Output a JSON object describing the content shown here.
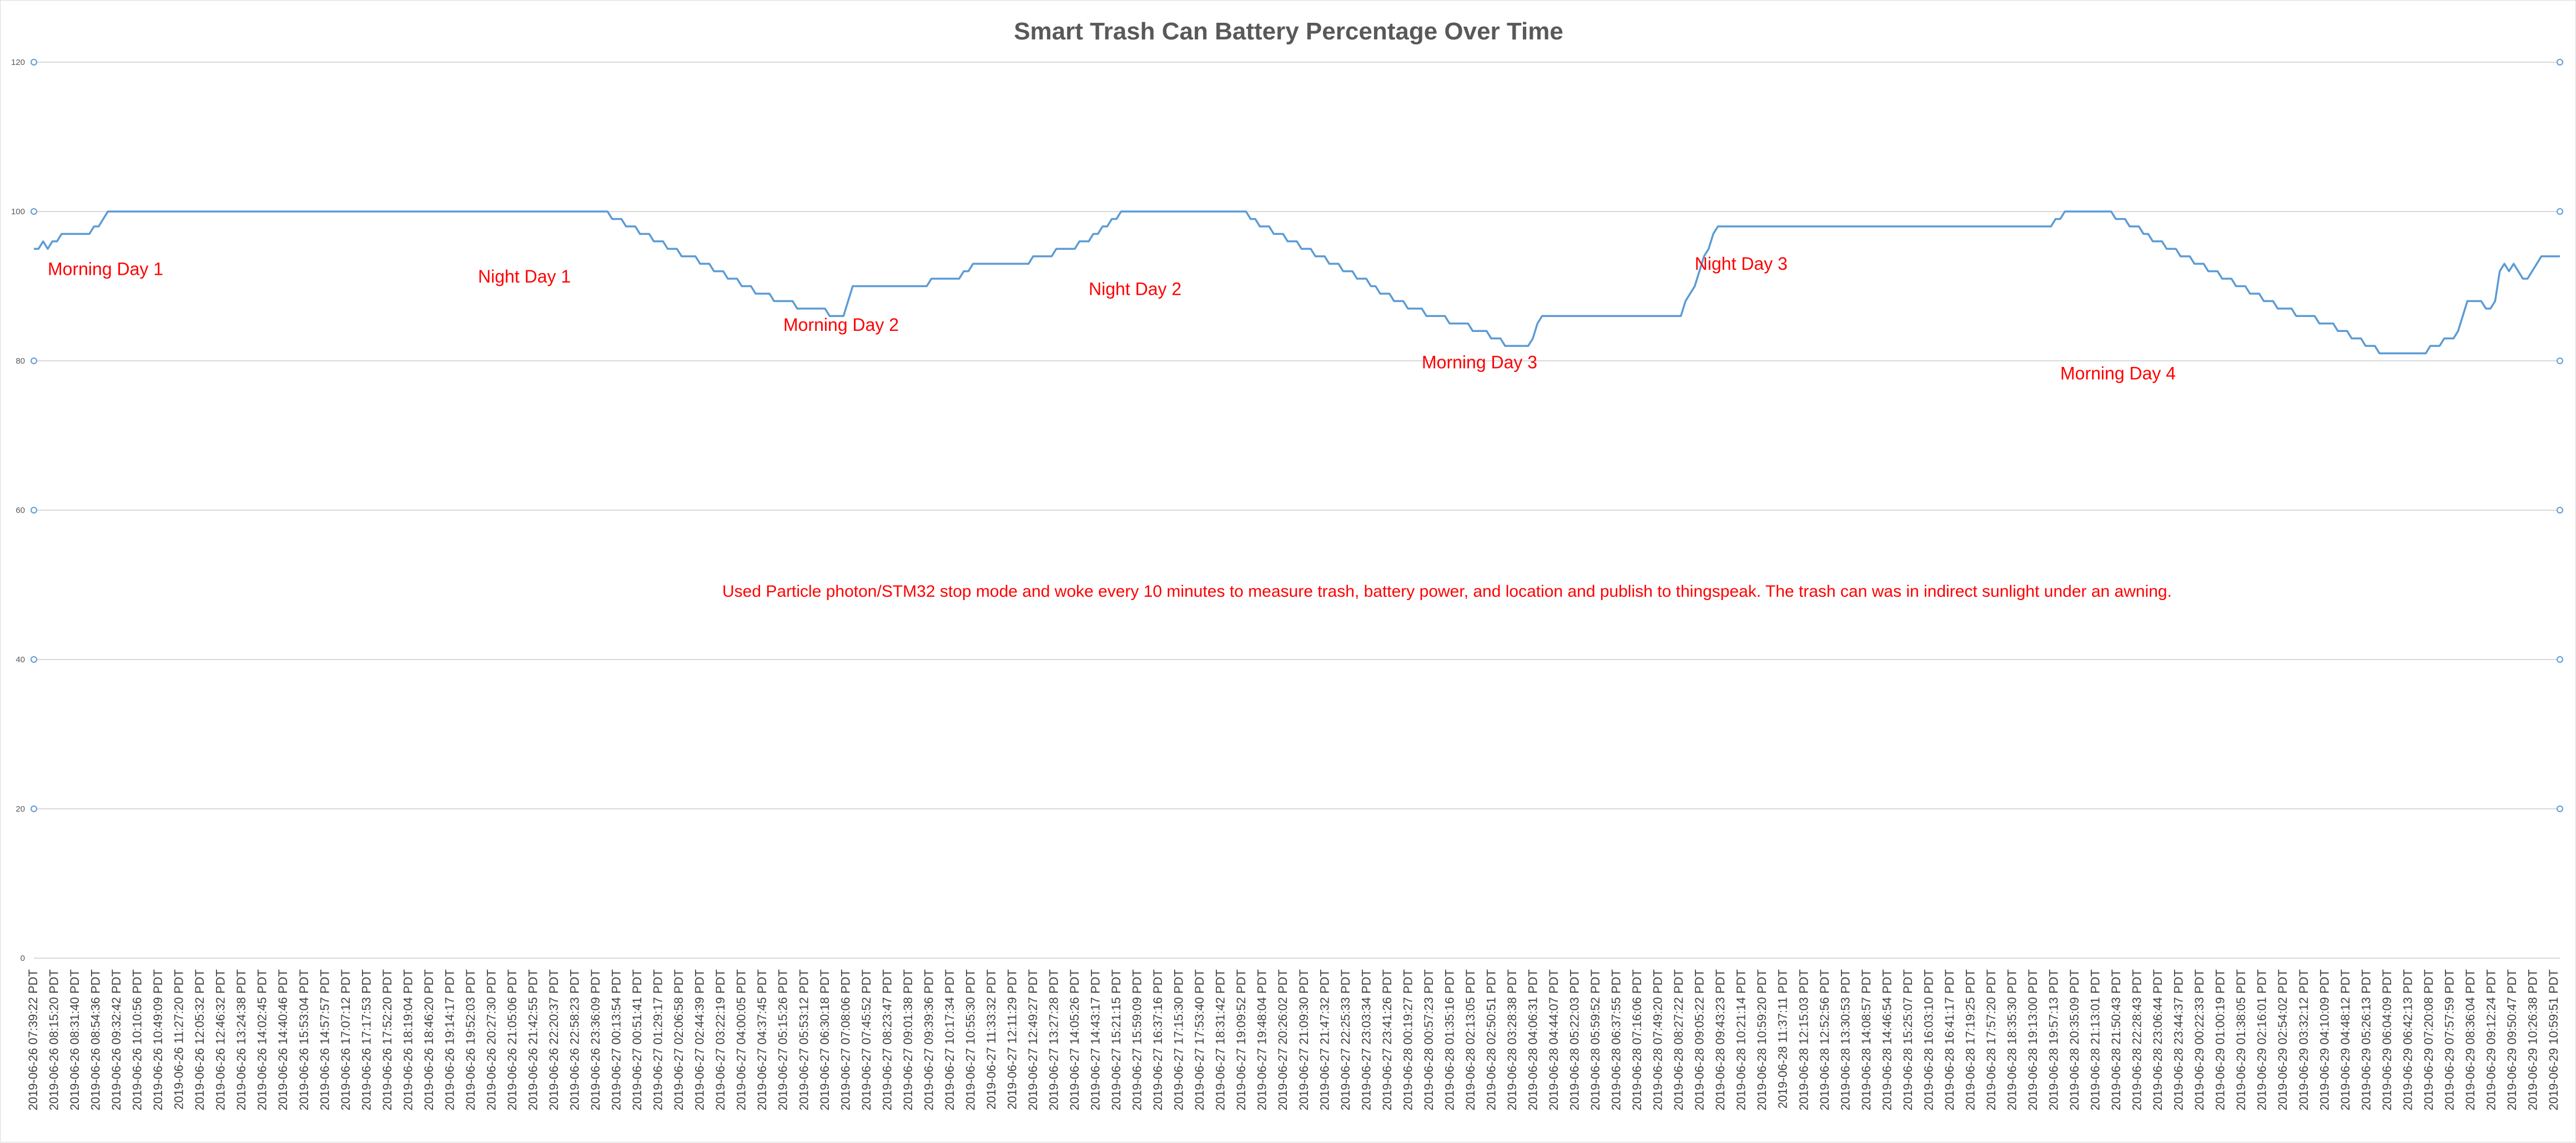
{
  "chart_data": {
    "type": "line",
    "title": "Smart Trash Can Battery Percentage Over Time",
    "xlabel": "",
    "ylabel": "",
    "ylim": [
      0,
      120
    ],
    "y_ticks": [
      "0",
      "20",
      "40",
      "60",
      "80",
      "100",
      "120"
    ],
    "grid": true,
    "legend": "none",
    "colors": {
      "line": "#5b9bd5",
      "grid": "#d9d9d9",
      "annotation": "#ff0000",
      "title": "#595959"
    },
    "x_tick_labels": [
      "2019-06-26 07:39:22 PDT",
      "2019-06-26 08:15:20 PDT",
      "2019-06-26 08:31:40 PDT",
      "2019-06-26 08:54:36 PDT",
      "2019-06-26 09:32:42 PDT",
      "2019-06-26 10:10:56 PDT",
      "2019-06-26 10:49:09 PDT",
      "2019-06-26 11:27:20 PDT",
      "2019-06-26 12:05:32 PDT",
      "2019-06-26 12:46:32 PDT",
      "2019-06-26 13:24:38 PDT",
      "2019-06-26 14:02:45 PDT",
      "2019-06-26 14:40:46 PDT",
      "2019-06-26 15:53:04 PDT",
      "2019-06-26 14:57:57 PDT",
      "2019-06-26 17:07:12 PDT",
      "2019-06-26 17:17:53 PDT",
      "2019-06-26 17:52:20 PDT",
      "2019-06-26 18:19:04 PDT",
      "2019-06-26 18:46:20 PDT",
      "2019-06-26 19:14:17 PDT",
      "2019-06-26 19:52:03 PDT",
      "2019-06-26 20:27:30 PDT",
      "2019-06-26 21:05:06 PDT",
      "2019-06-26 21:42:55 PDT",
      "2019-06-26 22:20:37 PDT",
      "2019-06-26 22:58:23 PDT",
      "2019-06-26 23:36:09 PDT",
      "2019-06-27 00:13:54 PDT",
      "2019-06-27 00:51:41 PDT",
      "2019-06-27 01:29:17 PDT",
      "2019-06-27 02:06:58 PDT",
      "2019-06-27 02:44:39 PDT",
      "2019-06-27 03:22:19 PDT",
      "2019-06-27 04:00:05 PDT",
      "2019-06-27 04:37:45 PDT",
      "2019-06-27 05:15:26 PDT",
      "2019-06-27 05:53:12 PDT",
      "2019-06-27 06:30:18 PDT",
      "2019-06-27 07:08:06 PDT",
      "2019-06-27 07:45:52 PDT",
      "2019-06-27 08:23:47 PDT",
      "2019-06-27 09:01:38 PDT",
      "2019-06-27 09:39:36 PDT",
      "2019-06-27 10:17:34 PDT",
      "2019-06-27 10:55:30 PDT",
      "2019-06-27 11:33:32 PDT",
      "2019-06-27 12:11:29 PDT",
      "2019-06-27 12:49:27 PDT",
      "2019-06-27 13:27:28 PDT",
      "2019-06-27 14:05:26 PDT",
      "2019-06-27 14:43:17 PDT",
      "2019-06-27 15:21:15 PDT",
      "2019-06-27 15:59:09 PDT",
      "2019-06-27 16:37:16 PDT",
      "2019-06-27 17:15:30 PDT",
      "2019-06-27 17:53:40 PDT",
      "2019-06-27 18:31:42 PDT",
      "2019-06-27 19:09:52 PDT",
      "2019-06-27 19:48:04 PDT",
      "2019-06-27 20:26:02 PDT",
      "2019-06-27 21:09:30 PDT",
      "2019-06-27 21:47:32 PDT",
      "2019-06-27 22:25:33 PDT",
      "2019-06-27 23:03:34 PDT",
      "2019-06-27 23:41:26 PDT",
      "2019-06-28 00:19:27 PDT",
      "2019-06-28 00:57:23 PDT",
      "2019-06-28 01:35:16 PDT",
      "2019-06-28 02:13:05 PDT",
      "2019-06-28 02:50:51 PDT",
      "2019-06-28 03:28:38 PDT",
      "2019-06-28 04:06:31 PDT",
      "2019-06-28 04:44:07 PDT",
      "2019-06-28 05:22:03 PDT",
      "2019-06-28 05:59:52 PDT",
      "2019-06-28 06:37:55 PDT",
      "2019-06-28 07:16:06 PDT",
      "2019-06-28 07:49:20 PDT",
      "2019-06-28 08:27:22 PDT",
      "2019-06-28 09:05:22 PDT",
      "2019-06-28 09:43:23 PDT",
      "2019-06-28 10:21:14 PDT",
      "2019-06-28 10:59:20 PDT",
      "2019-06-28 11:37:11 PDT",
      "2019-06-28 12:15:03 PDT",
      "2019-06-28 12:52:56 PDT",
      "2019-06-28 13:30:53 PDT",
      "2019-06-28 14:08:57 PDT",
      "2019-06-28 14:46:54 PDT",
      "2019-06-28 15:25:07 PDT",
      "2019-06-28 16:03:10 PDT",
      "2019-06-28 16:41:17 PDT",
      "2019-06-28 17:19:25 PDT",
      "2019-06-28 17:57:20 PDT",
      "2019-06-28 18:35:30 PDT",
      "2019-06-28 19:13:00 PDT",
      "2019-06-28 19:57:13 PDT",
      "2019-06-28 20:35:09 PDT",
      "2019-06-28 21:13:01 PDT",
      "2019-06-28 21:50:43 PDT",
      "2019-06-28 22:28:43 PDT",
      "2019-06-28 23:06:44 PDT",
      "2019-06-28 23:44:37 PDT",
      "2019-06-29 00:22:33 PDT",
      "2019-06-29 01:00:19 PDT",
      "2019-06-29 01:38:05 PDT",
      "2019-06-29 02:16:01 PDT",
      "2019-06-29 02:54:02 PDT",
      "2019-06-29 03:32:12 PDT",
      "2019-06-29 04:10:09 PDT",
      "2019-06-29 04:48:12 PDT",
      "2019-06-29 05:26:13 PDT",
      "2019-06-29 06:04:09 PDT",
      "2019-06-29 06:42:13 PDT",
      "2019-06-29 07:20:08 PDT",
      "2019-06-29 07:57:59 PDT",
      "2019-06-29 08:36:04 PDT",
      "2019-06-29 09:12:24 PDT",
      "2019-06-29 09:50:47 PDT",
      "2019-06-29 10:26:38 PDT",
      "2019-06-29 10:59:51 PDT"
    ],
    "series": [
      {
        "values": [
          95,
          95,
          96,
          95,
          96,
          96,
          97,
          97,
          97,
          97,
          97,
          97,
          97,
          98,
          98,
          99,
          100,
          100,
          100,
          100,
          100,
          100,
          100,
          100,
          100,
          100,
          100,
          100,
          100,
          100,
          100,
          100,
          100,
          100,
          100,
          100,
          100,
          100,
          100,
          100,
          100,
          100,
          100,
          100,
          100,
          100,
          100,
          100,
          100,
          100,
          100,
          100,
          100,
          100,
          100,
          100,
          100,
          100,
          100,
          100,
          100,
          100,
          100,
          100,
          100,
          100,
          100,
          100,
          100,
          100,
          100,
          100,
          100,
          100,
          100,
          100,
          100,
          100,
          100,
          100,
          100,
          100,
          100,
          100,
          100,
          100,
          100,
          100,
          100,
          100,
          100,
          100,
          100,
          100,
          100,
          100,
          100,
          100,
          100,
          100,
          100,
          100,
          100,
          100,
          100,
          100,
          100,
          100,
          100,
          100,
          100,
          100,
          100,
          100,
          100,
          100,
          100,
          100,
          100,
          100,
          100,
          100,
          100,
          100,
          100,
          99,
          99,
          99,
          98,
          98,
          98,
          97,
          97,
          97,
          96,
          96,
          96,
          95,
          95,
          95,
          94,
          94,
          94,
          94,
          93,
          93,
          93,
          92,
          92,
          92,
          91,
          91,
          91,
          90,
          90,
          90,
          89,
          89,
          89,
          89,
          88,
          88,
          88,
          88,
          88,
          87,
          87,
          87,
          87,
          87,
          87,
          87,
          86,
          86,
          86,
          86,
          88,
          90,
          90,
          90,
          90,
          90,
          90,
          90,
          90,
          90,
          90,
          90,
          90,
          90,
          90,
          90,
          90,
          90,
          91,
          91,
          91,
          91,
          91,
          91,
          91,
          92,
          92,
          93,
          93,
          93,
          93,
          93,
          93,
          93,
          93,
          93,
          93,
          93,
          93,
          93,
          94,
          94,
          94,
          94,
          94,
          95,
          95,
          95,
          95,
          95,
          96,
          96,
          96,
          97,
          97,
          98,
          98,
          99,
          99,
          100,
          100,
          100,
          100,
          100,
          100,
          100,
          100,
          100,
          100,
          100,
          100,
          100,
          100,
          100,
          100,
          100,
          100,
          100,
          100,
          100,
          100,
          100,
          100,
          100,
          100,
          100,
          100,
          99,
          99,
          98,
          98,
          98,
          97,
          97,
          97,
          96,
          96,
          96,
          95,
          95,
          95,
          94,
          94,
          94,
          93,
          93,
          93,
          92,
          92,
          92,
          91,
          91,
          91,
          90,
          90,
          89,
          89,
          89,
          88,
          88,
          88,
          87,
          87,
          87,
          87,
          86,
          86,
          86,
          86,
          86,
          85,
          85,
          85,
          85,
          85,
          84,
          84,
          84,
          84,
          83,
          83,
          83,
          82,
          82,
          82,
          82,
          82,
          82,
          83,
          85,
          86,
          86,
          86,
          86,
          86,
          86,
          86,
          86,
          86,
          86,
          86,
          86,
          86,
          86,
          86,
          86,
          86,
          86,
          86,
          86,
          86,
          86,
          86,
          86,
          86,
          86,
          86,
          86,
          86,
          86,
          86,
          88,
          89,
          90,
          92,
          94,
          95,
          97,
          98,
          98,
          98,
          98,
          98,
          98,
          98,
          98,
          98,
          98,
          98,
          98,
          98,
          98,
          98,
          98,
          98,
          98,
          98,
          98,
          98,
          98,
          98,
          98,
          98,
          98,
          98,
          98,
          98,
          98,
          98,
          98,
          98,
          98,
          98,
          98,
          98,
          98,
          98,
          98,
          98,
          98,
          98,
          98,
          98,
          98,
          98,
          98,
          98,
          98,
          98,
          98,
          98,
          98,
          98,
          98,
          98,
          98,
          98,
          98,
          98,
          98,
          98,
          98,
          98,
          98,
          98,
          98,
          98,
          98,
          98,
          98,
          98,
          99,
          99,
          100,
          100,
          100,
          100,
          100,
          100,
          100,
          100,
          100,
          100,
          100,
          99,
          99,
          99,
          98,
          98,
          98,
          97,
          97,
          96,
          96,
          96,
          95,
          95,
          95,
          94,
          94,
          94,
          93,
          93,
          93,
          92,
          92,
          92,
          91,
          91,
          91,
          90,
          90,
          90,
          89,
          89,
          89,
          88,
          88,
          88,
          87,
          87,
          87,
          87,
          86,
          86,
          86,
          86,
          86,
          85,
          85,
          85,
          85,
          84,
          84,
          84,
          83,
          83,
          83,
          82,
          82,
          82,
          81,
          81,
          81,
          81,
          81,
          81,
          81,
          81,
          81,
          81,
          81,
          82,
          82,
          82,
          83,
          83,
          83,
          84,
          86,
          88,
          88,
          88,
          88,
          87,
          87,
          88,
          92,
          93,
          92,
          93,
          92,
          91,
          91,
          92,
          93,
          94,
          94,
          94,
          94,
          94
        ]
      }
    ],
    "annotations": [
      {
        "text": "Morning Day 1",
        "x_index": 3,
        "y": 91.5
      },
      {
        "text": "Night Day 1",
        "x_index": 96,
        "y": 90.5
      },
      {
        "text": "Morning Day 2",
        "x_index": 162,
        "y": 84.0
      },
      {
        "text": "Night Day 2",
        "x_index": 228,
        "y": 88.8
      },
      {
        "text": "Morning Day 3",
        "x_index": 300,
        "y": 79.0
      },
      {
        "text": "Night Day 3",
        "x_index": 359,
        "y": 92.2
      },
      {
        "text": "Morning Day 4",
        "x_index": 438,
        "y": 77.5
      }
    ],
    "note": "Used Particle photon/STM32 stop mode and woke every 10 minutes to measure trash, battery power, and location and publish to thingspeak. The trash can was in indirect sunlight under an awning."
  }
}
